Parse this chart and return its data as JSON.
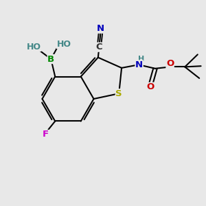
{
  "bg_color": "#e8e8e8",
  "bond_color": "#000000",
  "bond_width": 1.5,
  "atom_colors": {
    "C": "#000000",
    "N": "#0000bb",
    "O": "#cc0000",
    "S": "#aaaa00",
    "B": "#008800",
    "F": "#cc00cc",
    "H": "#448888"
  },
  "font_size": 9.5
}
